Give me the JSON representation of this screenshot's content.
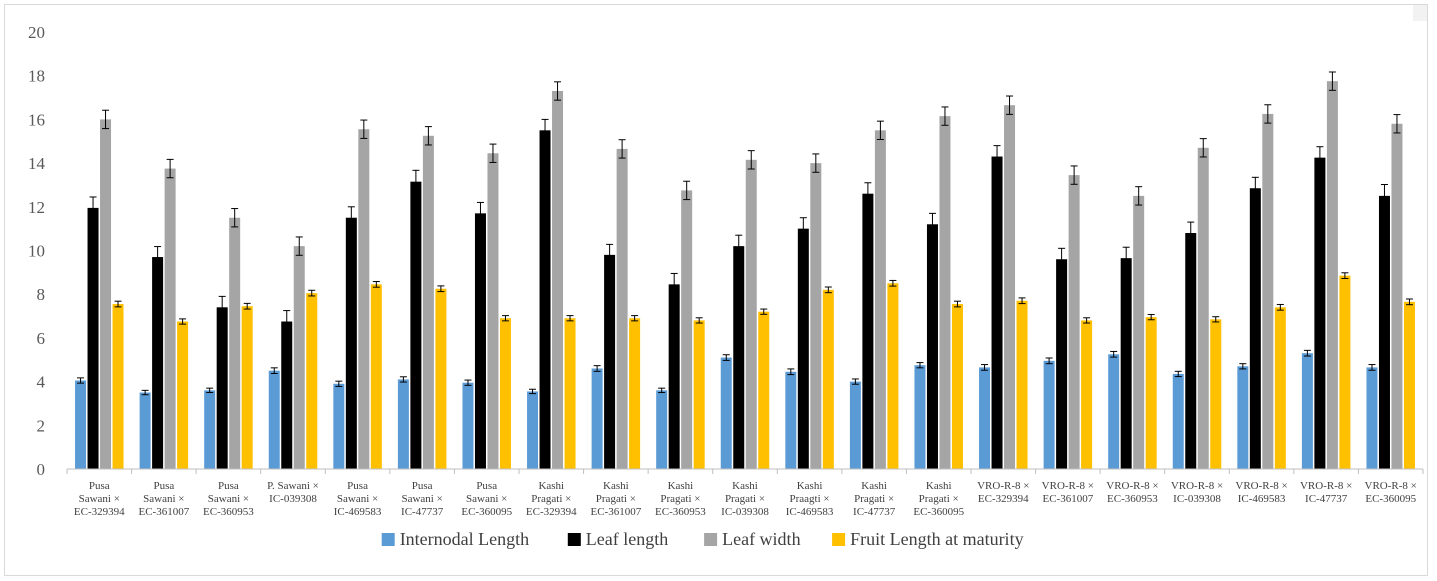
{
  "chart_data": {
    "type": "bar",
    "title": "",
    "xlabel": "",
    "ylabel": "",
    "ylim": [
      0,
      20
    ],
    "yticks": [
      0,
      2,
      4,
      6,
      8,
      10,
      12,
      14,
      16,
      18,
      20
    ],
    "grid": false,
    "legend_position": "bottom",
    "error_bars": true,
    "categories": [
      [
        "Pusa",
        "Sawani ×",
        "EC-329394"
      ],
      [
        "Pusa",
        "Sawani ×",
        "EC-361007"
      ],
      [
        "Pusa",
        "Sawani ×",
        "EC-360953"
      ],
      [
        "P. Sawani ×",
        "IC-039308"
      ],
      [
        "Pusa",
        "Sawani ×",
        "IC-469583"
      ],
      [
        "Pusa",
        "Sawani ×",
        "IC-47737"
      ],
      [
        "Pusa",
        "Sawani ×",
        "EC-360095"
      ],
      [
        "Kashi",
        "Pragati ×",
        "EC-329394"
      ],
      [
        "Kashi",
        "Pragati ×",
        "EC-361007"
      ],
      [
        "Kashi",
        "Pragati ×",
        "EC-360953"
      ],
      [
        "Kashi",
        "Pragati ×",
        "IC-039308"
      ],
      [
        "Kashi",
        "Praagti ×",
        "IC-469583"
      ],
      [
        "Kashi",
        "Pragati ×",
        "IC-47737"
      ],
      [
        "Kashi",
        "Pragati ×",
        "EC-360095"
      ],
      [
        "VRO-R-8 ×",
        "EC-329394"
      ],
      [
        "VRO-R-8 ×",
        "EC-361007"
      ],
      [
        "VRO-R-8 ×",
        "EC-360953"
      ],
      [
        "VRO-R-8 ×",
        "IC-039308"
      ],
      [
        "VRO-R-8 ×",
        "IC-469583"
      ],
      [
        "VRO-R-8 ×",
        "IC-47737"
      ],
      [
        "VRO-R-8 ×",
        "EC-360095"
      ]
    ],
    "series": [
      {
        "name": "Internodal Length",
        "color": "#5b9bd5",
        "values": [
          4.05,
          3.5,
          3.6,
          4.5,
          3.9,
          4.1,
          3.95,
          3.55,
          4.6,
          3.6,
          5.1,
          4.45,
          4.0,
          4.75,
          4.65,
          4.95,
          5.25,
          4.35,
          4.7,
          5.3,
          4.65
        ],
        "errors": [
          0.12,
          0.1,
          0.1,
          0.13,
          0.12,
          0.12,
          0.12,
          0.1,
          0.13,
          0.1,
          0.13,
          0.13,
          0.12,
          0.12,
          0.13,
          0.13,
          0.13,
          0.12,
          0.12,
          0.13,
          0.13
        ]
      },
      {
        "name": "Leaf length",
        "color": "#000000",
        "values": [
          11.95,
          9.7,
          7.4,
          6.75,
          11.5,
          13.15,
          11.7,
          15.5,
          9.8,
          8.45,
          10.2,
          11.0,
          12.6,
          11.2,
          14.3,
          9.6,
          9.65,
          10.8,
          12.85,
          14.25,
          12.5
        ],
        "errors": [
          0.5,
          0.48,
          0.5,
          0.5,
          0.5,
          0.52,
          0.5,
          0.5,
          0.48,
          0.5,
          0.5,
          0.5,
          0.5,
          0.5,
          0.5,
          0.5,
          0.5,
          0.5,
          0.5,
          0.5,
          0.52
        ]
      },
      {
        "name": "Leaf width",
        "color": "#a5a5a5",
        "values": [
          16.0,
          13.75,
          11.5,
          10.2,
          15.55,
          15.25,
          14.45,
          17.3,
          14.65,
          12.75,
          14.15,
          14.0,
          15.5,
          16.15,
          16.65,
          13.45,
          12.5,
          14.7,
          16.25,
          17.75,
          15.8
        ],
        "errors": [
          0.42,
          0.42,
          0.42,
          0.42,
          0.42,
          0.42,
          0.42,
          0.42,
          0.42,
          0.42,
          0.42,
          0.42,
          0.42,
          0.42,
          0.42,
          0.42,
          0.42,
          0.42,
          0.42,
          0.42,
          0.42
        ]
      },
      {
        "name": "Fruit Length at maturity",
        "color": "#ffc000",
        "values": [
          7.55,
          6.75,
          7.45,
          8.05,
          8.45,
          8.25,
          6.9,
          6.9,
          6.9,
          6.8,
          7.2,
          8.2,
          8.5,
          7.55,
          7.7,
          6.8,
          6.95,
          6.85,
          7.4,
          8.85,
          7.65
        ],
        "errors": [
          0.13,
          0.12,
          0.13,
          0.13,
          0.13,
          0.13,
          0.12,
          0.12,
          0.12,
          0.12,
          0.12,
          0.13,
          0.13,
          0.13,
          0.13,
          0.12,
          0.12,
          0.12,
          0.13,
          0.13,
          0.13
        ]
      }
    ]
  },
  "colors": {
    "axis": "#bfbfbf",
    "error_bar": "#000000",
    "frame": "#d9d9d9"
  }
}
